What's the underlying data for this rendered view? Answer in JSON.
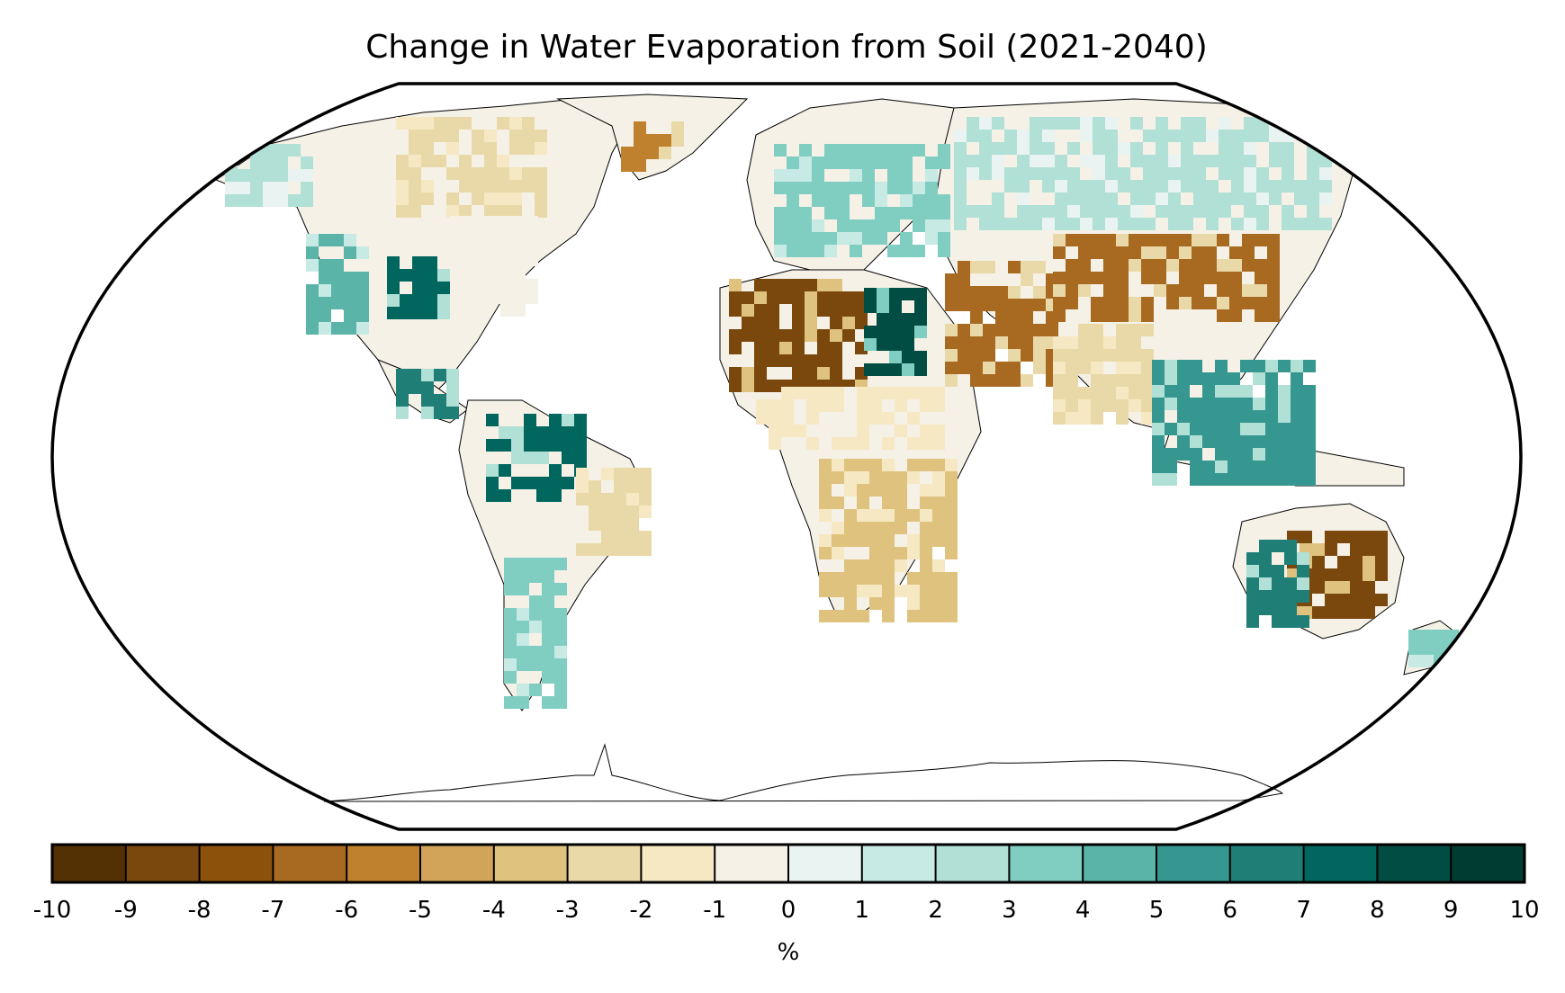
{
  "title": "Change in Water Evaporation from Soil (2021-2040)",
  "colorbar": {
    "unit_label": "%",
    "tick_labels": [
      "-10",
      "-9",
      "-8",
      "-7",
      "-6",
      "-5",
      "-4",
      "-3",
      "-2",
      "-1",
      "0",
      "1",
      "2",
      "3",
      "4",
      "5",
      "6",
      "7",
      "8",
      "9",
      "10"
    ],
    "bins": [
      {
        "from": -10,
        "to": -9,
        "color": "#543005"
      },
      {
        "from": -9,
        "to": -8,
        "color": "#7a470d"
      },
      {
        "from": -8,
        "to": -7,
        "color": "#8c510a"
      },
      {
        "from": -7,
        "to": -6,
        "color": "#a86a20"
      },
      {
        "from": -6,
        "to": -5,
        "color": "#bf812d"
      },
      {
        "from": -5,
        "to": -4,
        "color": "#d1a45a"
      },
      {
        "from": -4,
        "to": -3,
        "color": "#dfc27d"
      },
      {
        "from": -3,
        "to": -2,
        "color": "#ead9a8"
      },
      {
        "from": -2,
        "to": -1,
        "color": "#f6e8c3"
      },
      {
        "from": -1,
        "to": 0,
        "color": "#f5f1e6"
      },
      {
        "from": 0,
        "to": 1,
        "color": "#e9f3f1"
      },
      {
        "from": 1,
        "to": 2,
        "color": "#c7eae5"
      },
      {
        "from": 2,
        "to": 3,
        "color": "#b0e0d6"
      },
      {
        "from": 3,
        "to": 4,
        "color": "#80cdc1"
      },
      {
        "from": 4,
        "to": 5,
        "color": "#5ab4a8"
      },
      {
        "from": 5,
        "to": 6,
        "color": "#35978f"
      },
      {
        "from": 6,
        "to": 7,
        "color": "#1f7f77"
      },
      {
        "from": 7,
        "to": 8,
        "color": "#01665e"
      },
      {
        "from": 8,
        "to": 9,
        "color": "#014d44"
      },
      {
        "from": 9,
        "to": 10,
        "color": "#003c30"
      }
    ]
  },
  "map": {
    "projection": "Robinson",
    "region_values": [
      {
        "region": "Western North America",
        "value": 4
      },
      {
        "region": "Great Plains",
        "value": 7
      },
      {
        "region": "Northern Canada",
        "value": -3
      },
      {
        "region": "Alaska",
        "value": 2
      },
      {
        "region": "Eastern North America",
        "value": -1
      },
      {
        "region": "Greenland coast",
        "value": -6
      },
      {
        "region": "Central America",
        "value": 6
      },
      {
        "region": "Amazon",
        "value": 7
      },
      {
        "region": "Brazilian Highlands",
        "value": -3
      },
      {
        "region": "Southern South America",
        "value": 3
      },
      {
        "region": "Europe",
        "value": 3
      },
      {
        "region": "Sahara",
        "value": -9
      },
      {
        "region": "North Africa east",
        "value": 8
      },
      {
        "region": "Sahel",
        "value": -2
      },
      {
        "region": "Southern Africa",
        "value": -4
      },
      {
        "region": "Middle East",
        "value": -7
      },
      {
        "region": "Siberia",
        "value": 2
      },
      {
        "region": "Central Asia",
        "value": -7
      },
      {
        "region": "India",
        "value": -3
      },
      {
        "region": "Southeast Asia",
        "value": 5
      },
      {
        "region": "Australia interior",
        "value": -9
      },
      {
        "region": "Australia coast",
        "value": 6
      },
      {
        "region": "New Zealand",
        "value": 3
      }
    ]
  }
}
